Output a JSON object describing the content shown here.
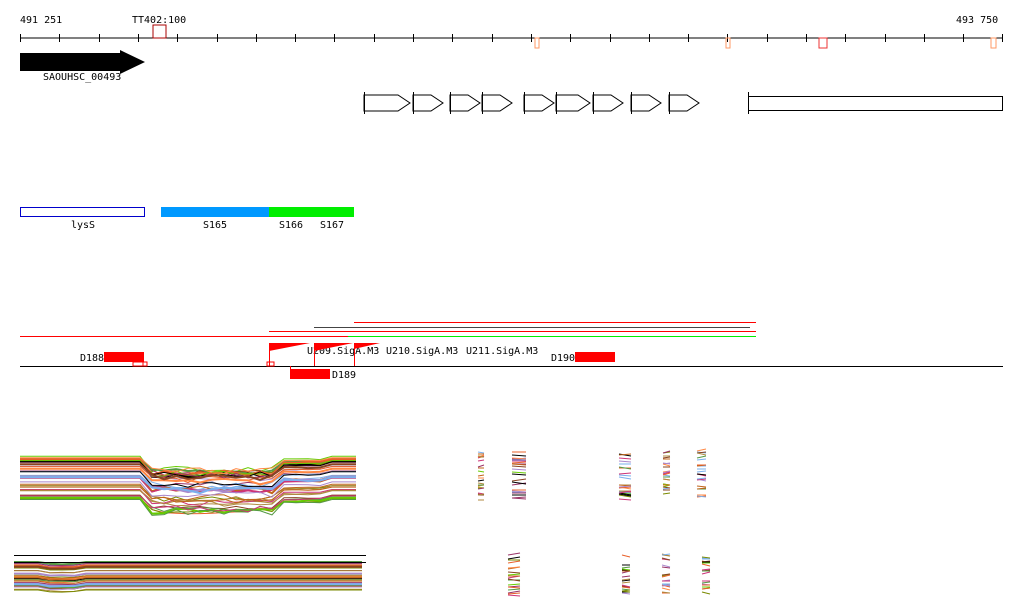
{
  "ruler": {
    "start": "491 251",
    "end": "493 750",
    "marker_label": "TT402:100"
  },
  "gene": {
    "label": "SAOUHSC_00493"
  },
  "features": {
    "lysS": "lysS",
    "s165": "S165",
    "s166": "S166",
    "s167": "S167"
  },
  "segments": {
    "d188": "D188",
    "d189": "D189",
    "d190": "D190"
  },
  "promoters": [
    "U209.SigA.M3",
    "U210.SigA.M3",
    "U211.SigA.M3"
  ],
  "colors": {
    "red": "#ff0000",
    "blue": "#0099ff",
    "green": "#00ee00",
    "outline_blue": "#0000cc"
  }
}
